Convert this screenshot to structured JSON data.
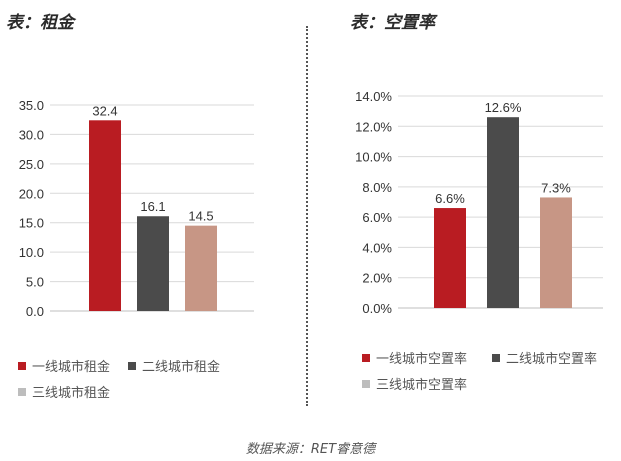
{
  "titles": {
    "left": "表：租金",
    "right": "表：空置率"
  },
  "colors": {
    "tier1": "#b91c22",
    "tier2": "#4b4b4b",
    "tier3": "#c79685",
    "tier3_legend": "#bdbdbd"
  },
  "chart_data": [
    {
      "type": "bar",
      "title": "表：租金",
      "categories": [
        "一线城市租金",
        "二线城市租金",
        "三线城市租金"
      ],
      "values": [
        32.4,
        16.1,
        14.5
      ],
      "value_labels": [
        "32.4",
        "16.1",
        "14.5"
      ],
      "ylim": [
        0,
        35
      ],
      "yticks": [
        0,
        5,
        10,
        15,
        20,
        25,
        30,
        35
      ],
      "ytick_labels": [
        "0.0",
        "5.0",
        "10.0",
        "15.0",
        "20.0",
        "25.0",
        "30.0",
        "35.0"
      ],
      "grid": true,
      "legend": [
        "一线城市租金",
        "二线城市租金",
        "三线城市租金"
      ],
      "legend_position": "bottom"
    },
    {
      "type": "bar",
      "title": "表：空置率",
      "categories": [
        "一线城市空置率",
        "二线城市空置率",
        "三线城市空置率"
      ],
      "values": [
        6.6,
        12.6,
        7.3
      ],
      "value_labels": [
        "6.6%",
        "12.6%",
        "7.3%"
      ],
      "ylim": [
        0,
        14
      ],
      "yticks": [
        0,
        2,
        4,
        6,
        8,
        10,
        12,
        14
      ],
      "ytick_labels": [
        "0.0%",
        "2.0%",
        "4.0%",
        "6.0%",
        "8.0%",
        "10.0%",
        "12.0%",
        "14.0%"
      ],
      "grid": true,
      "legend": [
        "一线城市空置率",
        "二线城市空置率",
        "三线城市空置率"
      ],
      "legend_position": "bottom"
    }
  ],
  "source": "数据来源：RET睿意德"
}
